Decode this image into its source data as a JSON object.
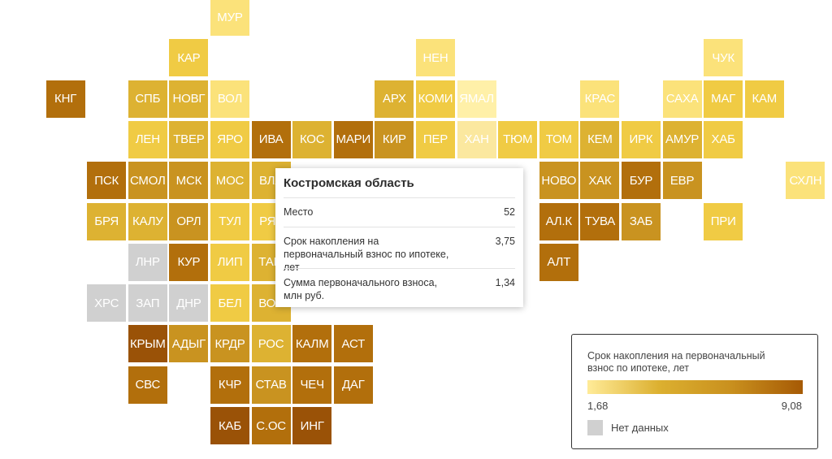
{
  "colors": {
    "scale": [
      "#fff0a8",
      "#fbe27a",
      "#f0cb44",
      "#ddb232",
      "#c99320",
      "#b26f0c",
      "#9a5207"
    ],
    "no_data": "#d0d0d0",
    "hover": "#fbe89f"
  },
  "selected": "КОС",
  "regions": [
    {
      "abbr": "МУР",
      "row": 0,
      "col": 5,
      "v": 1
    },
    {
      "abbr": "КАР",
      "row": 1,
      "col": 4,
      "v": 2
    },
    {
      "abbr": "НЕН",
      "row": 1,
      "col": 10,
      "v": 1
    },
    {
      "abbr": "ЧУК",
      "row": 1,
      "col": 17,
      "v": 1
    },
    {
      "abbr": "КНГ",
      "row": 2,
      "col": 1,
      "v": 5
    },
    {
      "abbr": "СПБ",
      "row": 2,
      "col": 3,
      "v": 3
    },
    {
      "abbr": "НОВГ",
      "row": 2,
      "col": 4,
      "v": 3
    },
    {
      "abbr": "ВОЛ",
      "row": 2,
      "col": 5,
      "v": 1
    },
    {
      "abbr": "АРХ",
      "row": 2,
      "col": 9,
      "v": 3
    },
    {
      "abbr": "КОМИ",
      "row": 2,
      "col": 10,
      "v": 2
    },
    {
      "abbr": "ЯМАЛ",
      "row": 2,
      "col": 11,
      "v": 0
    },
    {
      "abbr": "КРАС",
      "row": 2,
      "col": 14,
      "v": 1
    },
    {
      "abbr": "САХА",
      "row": 2,
      "col": 16,
      "v": 1
    },
    {
      "abbr": "МАГ",
      "row": 2,
      "col": 17,
      "v": 2
    },
    {
      "abbr": "КАМ",
      "row": 2,
      "col": 18,
      "v": 2
    },
    {
      "abbr": "ЛЕН",
      "row": 3,
      "col": 3,
      "v": 2
    },
    {
      "abbr": "ТВЕР",
      "row": 3,
      "col": 4,
      "v": 3
    },
    {
      "abbr": "ЯРО",
      "row": 3,
      "col": 5,
      "v": 2
    },
    {
      "abbr": "ИВА",
      "row": 3,
      "col": 6,
      "v": 5
    },
    {
      "abbr": "КОС",
      "row": 3,
      "col": 7,
      "v": 3
    },
    {
      "abbr": "МАРИ",
      "row": 3,
      "col": 8,
      "v": 5
    },
    {
      "abbr": "КИР",
      "row": 3,
      "col": 9,
      "v": 4
    },
    {
      "abbr": "ПЕР",
      "row": 3,
      "col": 10,
      "v": 2
    },
    {
      "abbr": "ХАН",
      "row": 3,
      "col": 11,
      "v": "h"
    },
    {
      "abbr": "ТЮМ",
      "row": 3,
      "col": 12,
      "v": 2
    },
    {
      "abbr": "ТОМ",
      "row": 3,
      "col": 13,
      "v": 2
    },
    {
      "abbr": "КЕМ",
      "row": 3,
      "col": 14,
      "v": 3
    },
    {
      "abbr": "ИРК",
      "row": 3,
      "col": 15,
      "v": 2
    },
    {
      "abbr": "АМУР",
      "row": 3,
      "col": 16,
      "v": 3
    },
    {
      "abbr": "ХАБ",
      "row": 3,
      "col": 17,
      "v": 2
    },
    {
      "abbr": "ПСК",
      "row": 4,
      "col": 2,
      "v": 5
    },
    {
      "abbr": "СМОЛ",
      "row": 4,
      "col": 3,
      "v": 4
    },
    {
      "abbr": "МСК",
      "row": 4,
      "col": 4,
      "v": 4
    },
    {
      "abbr": "МОС",
      "row": 4,
      "col": 5,
      "v": 3
    },
    {
      "abbr": "ВЛА",
      "row": 4,
      "col": 6,
      "v": 3
    },
    {
      "abbr": "НОВО",
      "row": 4,
      "col": 13,
      "v": 4
    },
    {
      "abbr": "ХАК",
      "row": 4,
      "col": 14,
      "v": 4
    },
    {
      "abbr": "БУР",
      "row": 4,
      "col": 15,
      "v": 5
    },
    {
      "abbr": "ЕВР",
      "row": 4,
      "col": 16,
      "v": 4
    },
    {
      "abbr": "СХЛН",
      "row": 4,
      "col": 19,
      "v": 1
    },
    {
      "abbr": "БРЯ",
      "row": 5,
      "col": 2,
      "v": 3
    },
    {
      "abbr": "КАЛУ",
      "row": 5,
      "col": 3,
      "v": 3
    },
    {
      "abbr": "ОРЛ",
      "row": 5,
      "col": 4,
      "v": 4
    },
    {
      "abbr": "ТУЛ",
      "row": 5,
      "col": 5,
      "v": 2
    },
    {
      "abbr": "РЯЗ",
      "row": 5,
      "col": 6,
      "v": 2
    },
    {
      "abbr": "АЛ.К",
      "row": 5,
      "col": 13,
      "v": 5
    },
    {
      "abbr": "ТУВА",
      "row": 5,
      "col": 14,
      "v": 5
    },
    {
      "abbr": "ЗАБ",
      "row": 5,
      "col": 15,
      "v": 4
    },
    {
      "abbr": "ПРИ",
      "row": 5,
      "col": 17,
      "v": 2
    },
    {
      "abbr": "ЛНР",
      "row": 6,
      "col": 3,
      "v": "nd"
    },
    {
      "abbr": "КУР",
      "row": 6,
      "col": 4,
      "v": 5
    },
    {
      "abbr": "ЛИП",
      "row": 6,
      "col": 5,
      "v": 2
    },
    {
      "abbr": "ТАМ",
      "row": 6,
      "col": 6,
      "v": 3
    },
    {
      "abbr": "АЛТ",
      "row": 6,
      "col": 13,
      "v": 5
    },
    {
      "abbr": "ХРС",
      "row": 7,
      "col": 2,
      "v": "nd"
    },
    {
      "abbr": "ЗАП",
      "row": 7,
      "col": 3,
      "v": "nd"
    },
    {
      "abbr": "ДНР",
      "row": 7,
      "col": 4,
      "v": "nd"
    },
    {
      "abbr": "БЕЛ",
      "row": 7,
      "col": 5,
      "v": 2
    },
    {
      "abbr": "ВОР",
      "row": 7,
      "col": 6,
      "v": 3
    },
    {
      "abbr": "КРЫМ",
      "row": 8,
      "col": 3,
      "v": 6
    },
    {
      "abbr": "АДЫГ",
      "row": 8,
      "col": 4,
      "v": 4
    },
    {
      "abbr": "КРДР",
      "row": 8,
      "col": 5,
      "v": 4
    },
    {
      "abbr": "РОС",
      "row": 8,
      "col": 6,
      "v": 3
    },
    {
      "abbr": "КАЛМ",
      "row": 8,
      "col": 7,
      "v": 5
    },
    {
      "abbr": "АСТ",
      "row": 8,
      "col": 8,
      "v": 5
    },
    {
      "abbr": "СВС",
      "row": 9,
      "col": 3,
      "v": 5
    },
    {
      "abbr": "КЧР",
      "row": 9,
      "col": 5,
      "v": 5
    },
    {
      "abbr": "СТАВ",
      "row": 9,
      "col": 6,
      "v": 4
    },
    {
      "abbr": "ЧЕЧ",
      "row": 9,
      "col": 7,
      "v": 5
    },
    {
      "abbr": "ДАГ",
      "row": 9,
      "col": 8,
      "v": 5
    },
    {
      "abbr": "КАБ",
      "row": 10,
      "col": 5,
      "v": 6
    },
    {
      "abbr": "С.ОС",
      "row": 10,
      "col": 6,
      "v": 5
    },
    {
      "abbr": "ИНГ",
      "row": 10,
      "col": 7,
      "v": 6
    }
  ],
  "tooltip": {
    "title": "Костромская область",
    "rows": [
      {
        "label": "Место",
        "value": "52"
      },
      {
        "label": "Срок накопления на первоначальный взнос по ипотеке, лет",
        "value": "3,75"
      },
      {
        "label": "Сумма первоначального взноса, млн руб.",
        "value": "1,34"
      }
    ]
  },
  "legend": {
    "title": "Срок накопления на первоначальный взнос по ипотеке, лет",
    "min": "1,68",
    "max": "9,08",
    "no_data_label": "Нет данных"
  }
}
